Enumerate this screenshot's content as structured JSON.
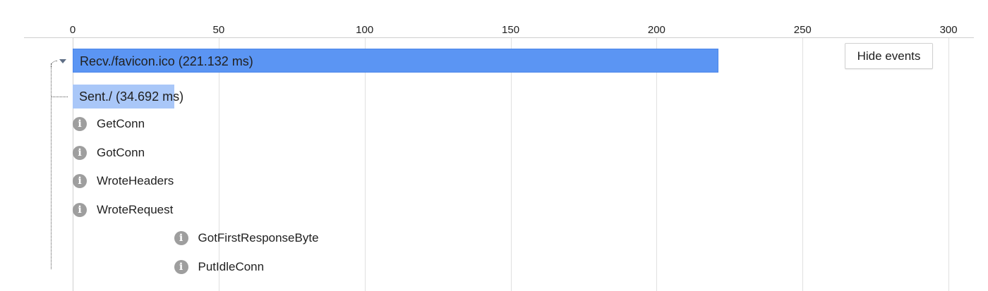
{
  "axis": {
    "ticks": [
      "0",
      "50",
      "100",
      "150",
      "200",
      "250",
      "300"
    ],
    "tick_values": [
      0,
      50,
      100,
      150,
      200,
      250,
      300
    ],
    "range_ms": [
      0,
      300
    ]
  },
  "spans": [
    {
      "label": "Recv./favicon.ico (221.132 ms)",
      "start_ms": 0,
      "duration_ms": 221.132,
      "color": "#5b95f3",
      "expanded": true
    },
    {
      "label": "Sent./ (34.692 ms)",
      "start_ms": 0,
      "duration_ms": 34.692,
      "color": "#a9c7f8"
    }
  ],
  "events": [
    {
      "label": "GetConn",
      "time_ms": 0,
      "icon": "info-icon"
    },
    {
      "label": "GotConn",
      "time_ms": 0,
      "icon": "info-icon"
    },
    {
      "label": "WroteHeaders",
      "time_ms": 0,
      "icon": "info-icon"
    },
    {
      "label": "WroteRequest",
      "time_ms": 0,
      "icon": "info-icon"
    },
    {
      "label": "GotFirstResponseByte",
      "time_ms": 34.692,
      "icon": "info-icon"
    },
    {
      "label": "PutIdleConn",
      "time_ms": 34.692,
      "icon": "info-icon"
    }
  ],
  "hide_events_label": "Hide events",
  "info_glyph": "i",
  "colors": {
    "gridline": "#e0e0e0",
    "icon": "#9e9e9e"
  }
}
